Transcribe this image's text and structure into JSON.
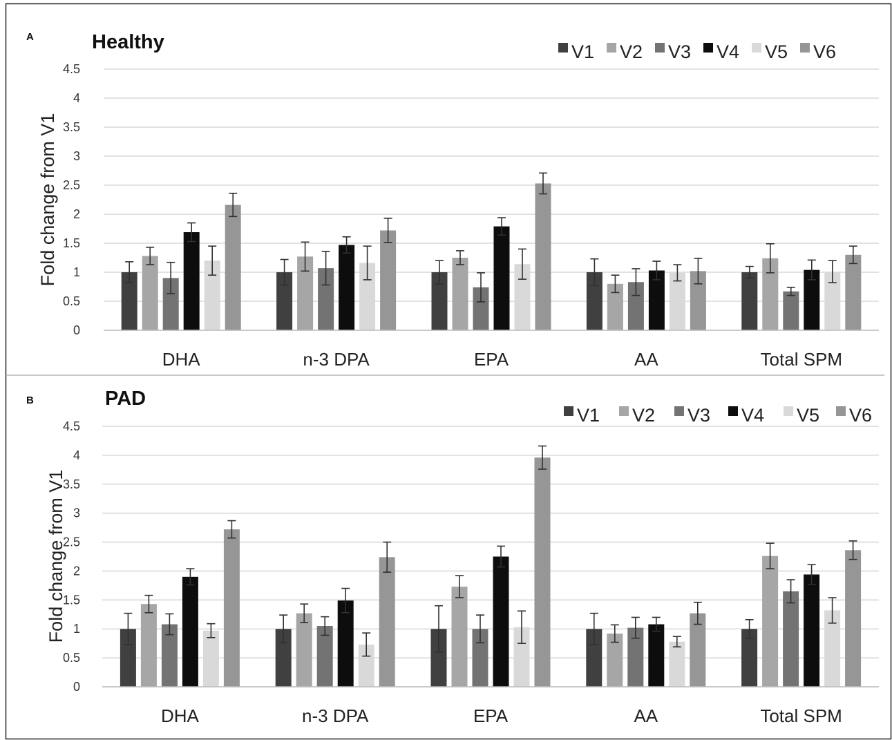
{
  "chart_data": [
    {
      "panel_letter": "A",
      "title": "Healthy",
      "type": "bar",
      "ylabel": "Fold change from V1",
      "xlabel": "",
      "ylim": [
        0,
        4.5
      ],
      "yticks": [
        "0",
        "0.5",
        "1",
        "1.5",
        "2",
        "2.5",
        "3",
        "3.5",
        "4",
        "4.5"
      ],
      "grid": true,
      "legend_position": "top-right",
      "categories": [
        "DHA",
        "n-3 DPA",
        "EPA",
        "AA",
        "Total SPM"
      ],
      "series": [
        {
          "name": "V1",
          "color": "#404040",
          "values": [
            1.0,
            1.0,
            1.0,
            1.0,
            1.0
          ],
          "error": [
            0.18,
            0.22,
            0.2,
            0.23,
            0.1
          ]
        },
        {
          "name": "V2",
          "color": "#a6a6a6",
          "values": [
            1.28,
            1.27,
            1.25,
            0.8,
            1.24
          ],
          "error": [
            0.15,
            0.25,
            0.12,
            0.15,
            0.25
          ]
        },
        {
          "name": "V3",
          "color": "#737373",
          "values": [
            0.9,
            1.07,
            0.74,
            0.83,
            0.67
          ],
          "error": [
            0.27,
            0.29,
            0.25,
            0.23,
            0.07
          ]
        },
        {
          "name": "V4",
          "color": "#0d0d0d",
          "values": [
            1.69,
            1.47,
            1.79,
            1.03,
            1.04
          ],
          "error": [
            0.16,
            0.14,
            0.15,
            0.16,
            0.17
          ]
        },
        {
          "name": "V5",
          "color": "#d9d9d9",
          "values": [
            1.2,
            1.16,
            1.14,
            0.99,
            1.01
          ],
          "error": [
            0.25,
            0.29,
            0.26,
            0.14,
            0.19
          ]
        },
        {
          "name": "V6",
          "color": "#969696",
          "values": [
            2.16,
            1.72,
            2.53,
            1.02,
            1.3
          ],
          "error": [
            0.2,
            0.21,
            0.18,
            0.22,
            0.15
          ]
        }
      ]
    },
    {
      "panel_letter": "B",
      "title": "PAD",
      "type": "bar",
      "ylabel": "Fold change from V1",
      "xlabel": "",
      "ylim": [
        0,
        4.5
      ],
      "yticks": [
        "0",
        "0.5",
        "1",
        "1.5",
        "2",
        "2.5",
        "3",
        "3.5",
        "4",
        "4.5"
      ],
      "grid": true,
      "legend_position": "top-right",
      "categories": [
        "DHA",
        "n-3 DPA",
        "EPA",
        "AA",
        "Total SPM"
      ],
      "series": [
        {
          "name": "V1",
          "color": "#404040",
          "values": [
            1.0,
            1.0,
            1.0,
            1.0,
            1.0
          ],
          "error": [
            0.27,
            0.24,
            0.4,
            0.27,
            0.16
          ]
        },
        {
          "name": "V2",
          "color": "#a6a6a6",
          "values": [
            1.43,
            1.27,
            1.73,
            0.92,
            2.26
          ],
          "error": [
            0.15,
            0.16,
            0.19,
            0.15,
            0.22
          ]
        },
        {
          "name": "V3",
          "color": "#737373",
          "values": [
            1.08,
            1.05,
            1.0,
            1.02,
            1.65
          ],
          "error": [
            0.18,
            0.16,
            0.24,
            0.18,
            0.2
          ]
        },
        {
          "name": "V4",
          "color": "#0d0d0d",
          "values": [
            1.9,
            1.49,
            2.25,
            1.08,
            1.94
          ],
          "error": [
            0.14,
            0.21,
            0.18,
            0.12,
            0.17
          ]
        },
        {
          "name": "V5",
          "color": "#d9d9d9",
          "values": [
            0.97,
            0.73,
            1.03,
            0.78,
            1.32
          ],
          "error": [
            0.12,
            0.2,
            0.28,
            0.09,
            0.22
          ]
        },
        {
          "name": "V6",
          "color": "#969696",
          "values": [
            2.72,
            2.24,
            3.96,
            1.27,
            2.36
          ],
          "error": [
            0.15,
            0.26,
            0.2,
            0.19,
            0.16
          ]
        }
      ]
    }
  ]
}
